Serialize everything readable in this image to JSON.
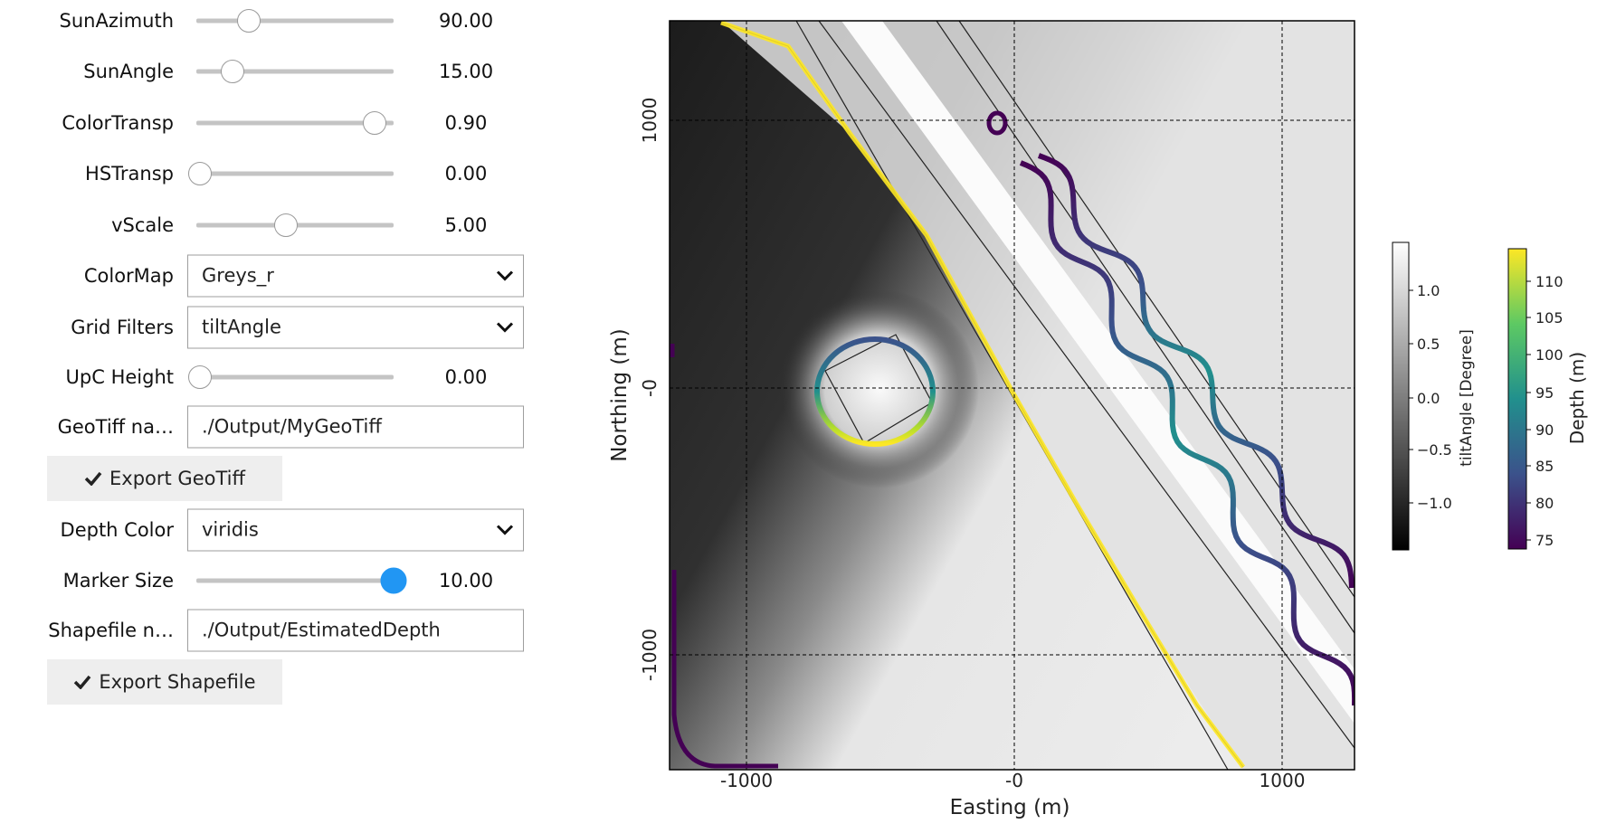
{
  "controls": {
    "rows": [
      {
        "label": "SunAzimuth",
        "value": "90.00"
      },
      {
        "label": "SunAngle",
        "value": "15.00"
      },
      {
        "label": "ColorTransp",
        "value": "0.90"
      },
      {
        "label": "HSTransp",
        "value": "0.00"
      },
      {
        "label": "vScale",
        "value": "5.00"
      },
      {
        "label": "ColorMap",
        "value": "Greys_r"
      },
      {
        "label": "Grid Filters",
        "value": "tiltAngle"
      },
      {
        "label": "UpC Height",
        "value": "0.00"
      },
      {
        "label": "GeoTiff na…",
        "value": "./Output/MyGeoTiff"
      },
      {
        "button": "Export GeoTiff"
      },
      {
        "label": "Depth Color",
        "value": "viridis"
      },
      {
        "label": "Marker Size",
        "value": "10.00"
      },
      {
        "label": "Shapefile n…",
        "value": "./Output/EstimatedDepth"
      },
      {
        "button": "Export Shapefile"
      }
    ]
  },
  "plot": {
    "x_label": "Easting (m)",
    "y_label": "Northing (m)",
    "x_ticks": [
      "-1000",
      "-0",
      "1000"
    ],
    "y_ticks": [
      "1000",
      "-0",
      "-1000"
    ],
    "colorbar1": {
      "label": "tiltAngle [Degree]",
      "ticks": [
        "1.0",
        "0.5",
        "0.0",
        "−0.5",
        "−1.0"
      ]
    },
    "colorbar2": {
      "label": "Depth (m)",
      "ticks": [
        "110",
        "105",
        "100",
        "95",
        "90",
        "85",
        "80",
        "75"
      ]
    }
  }
}
